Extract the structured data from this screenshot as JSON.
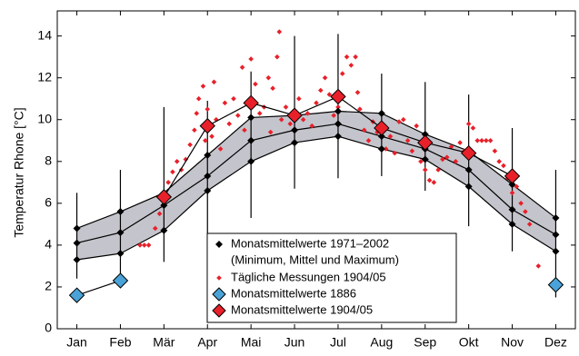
{
  "chart_data": {
    "type": "line",
    "y_label": "Temperatur Rhone [°C]",
    "xlim": [
      0.55,
      12.45
    ],
    "ylim": [
      0,
      15.2
    ],
    "xticks": [
      {
        "value": 1,
        "label": "Jan"
      },
      {
        "value": 2,
        "label": "Feb"
      },
      {
        "value": 3,
        "label": "Mär"
      },
      {
        "value": 4,
        "label": "Apr"
      },
      {
        "value": 5,
        "label": "Mai"
      },
      {
        "value": 6,
        "label": "Jun"
      },
      {
        "value": 7,
        "label": "Jul"
      },
      {
        "value": 8,
        "label": "Aug"
      },
      {
        "value": 9,
        "label": "Sep"
      },
      {
        "value": 10,
        "label": "Okt"
      },
      {
        "value": 11,
        "label": "Nov"
      },
      {
        "value": 12,
        "label": "Dez"
      }
    ],
    "yticks": [
      0,
      2,
      4,
      6,
      8,
      10,
      12,
      14
    ],
    "x": [
      1,
      2,
      3,
      4,
      5,
      6,
      7,
      8,
      9,
      10,
      11,
      12
    ],
    "legend": "lower-center",
    "series": [
      {
        "name": "Monatsmittelwerte 1971–2002",
        "name_detail": "(Minimum, Mittel und Maximum)",
        "color": "#000000",
        "band_color": "#c4c4cc",
        "min": [
          3.3,
          3.6,
          4.7,
          6.6,
          8.0,
          8.9,
          9.2,
          8.6,
          8.1,
          6.8,
          5.0,
          3.7
        ],
        "mean": [
          4.1,
          4.6,
          5.9,
          7.3,
          9.0,
          9.5,
          9.8,
          9.2,
          8.6,
          7.6,
          5.7,
          4.5
        ],
        "max": [
          4.8,
          5.6,
          6.5,
          8.3,
          10.1,
          10.2,
          10.4,
          10.3,
          9.3,
          8.5,
          6.9,
          5.3
        ],
        "whisker_low": [
          2.4,
          2.3,
          3.2,
          3.9,
          5.3,
          6.7,
          7.2,
          7.3,
          6.6,
          4.9,
          3.7,
          1.5
        ],
        "whisker_high": [
          6.5,
          7.6,
          10.6,
          10.9,
          12.3,
          14.0,
          14.1,
          12.2,
          11.8,
          11.2,
          9.6,
          7.6
        ]
      },
      {
        "name": "Tägliche Messungen 1904/05",
        "color": "#e8202a",
        "x": [
          2.45,
          2.55,
          2.65,
          2.8,
          2.9,
          3.0,
          3.1,
          3.2,
          3.3,
          3.4,
          3.5,
          3.6,
          3.7,
          3.75,
          3.8,
          3.9,
          3.95,
          4.0,
          4.1,
          4.15,
          4.2,
          4.3,
          4.4,
          4.5,
          4.6,
          4.7,
          4.8,
          4.85,
          4.95,
          5.0,
          5.1,
          5.2,
          5.3,
          5.4,
          5.45,
          5.5,
          5.6,
          5.65,
          5.7,
          5.8,
          5.9,
          6.0,
          6.1,
          6.2,
          6.3,
          6.4,
          6.5,
          6.6,
          6.7,
          6.8,
          6.9,
          7.0,
          7.1,
          7.2,
          7.3,
          7.4,
          7.45,
          7.5,
          7.6,
          7.7,
          7.8,
          7.9,
          8.0,
          8.1,
          8.2,
          8.3,
          8.4,
          8.5,
          8.6,
          8.7,
          8.8,
          8.9,
          9.0,
          9.1,
          9.2,
          9.3,
          9.4,
          9.5,
          9.6,
          9.7,
          9.8,
          9.9,
          10.0,
          10.1,
          10.2,
          10.3,
          10.4,
          10.5,
          10.6,
          10.7,
          10.8,
          10.9,
          11.0,
          11.1,
          11.2,
          11.3,
          11.4,
          11.6
        ],
        "values": [
          4.0,
          4.0,
          4.0,
          4.8,
          5.5,
          6.2,
          7.0,
          7.5,
          8.0,
          7.6,
          8.1,
          8.8,
          9.5,
          10.3,
          11.0,
          11.6,
          9.0,
          10.5,
          9.2,
          11.8,
          10.0,
          8.6,
          10.8,
          9.8,
          11.0,
          10.2,
          12.5,
          9.5,
          10.9,
          12.9,
          11.7,
          10.3,
          10.6,
          12.0,
          9.4,
          11.5,
          13.0,
          14.2,
          10.0,
          10.6,
          9.8,
          10.4,
          11.0,
          10.0,
          10.3,
          9.7,
          10.8,
          11.4,
          12.0,
          11.2,
          10.2,
          10.6,
          12.2,
          13.0,
          12.6,
          13.0,
          11.3,
          10.5,
          9.5,
          9.0,
          9.9,
          9.4,
          9.6,
          8.6,
          9.2,
          8.4,
          9.9,
          10.0,
          9.0,
          8.5,
          9.7,
          8.0,
          7.6,
          7.1,
          7.0,
          7.6,
          8.1,
          8.2,
          8.7,
          8.0,
          8.9,
          8.5,
          9.8,
          9.6,
          9.0,
          9.0,
          9.0,
          9.0,
          8.5,
          8.0,
          7.8,
          7.2,
          6.5,
          6.8,
          6.0,
          5.6,
          5.0,
          3.0
        ]
      },
      {
        "name": "Monatsmittelwerte 1886",
        "color": "#4aa3d8",
        "values": [
          1.6,
          2.3,
          null,
          null,
          null,
          null,
          null,
          null,
          null,
          null,
          null,
          2.1
        ]
      },
      {
        "name": "Monatsmittelwerte 1904/05",
        "color": "#e8202a",
        "values": [
          null,
          null,
          6.3,
          9.7,
          10.8,
          10.2,
          11.1,
          9.6,
          8.9,
          8.4,
          7.3,
          null
        ]
      }
    ]
  }
}
